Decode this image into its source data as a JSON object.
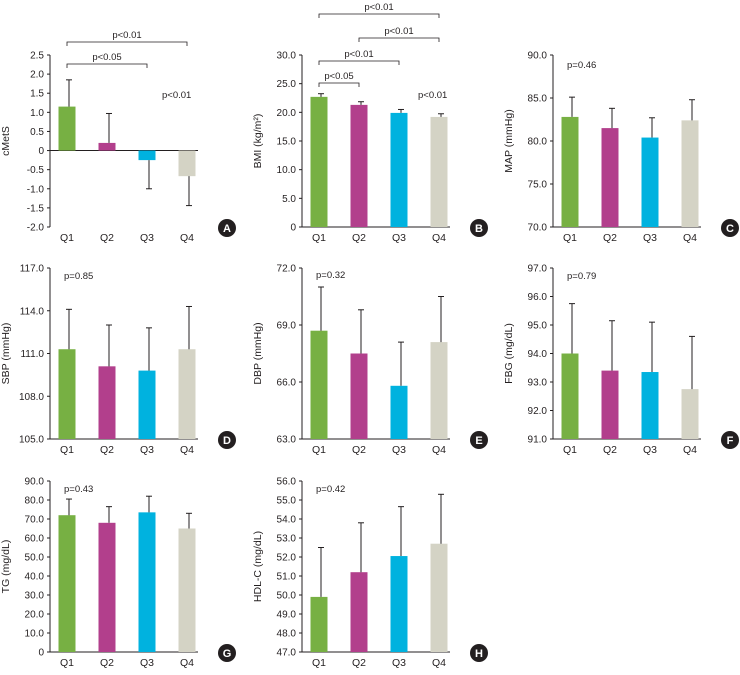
{
  "colors": {
    "Q1": "#77b043",
    "Q2": "#b23f8c",
    "Q3": "#00b2df",
    "Q4": "#d4d3c5",
    "axis": "#231f20",
    "badge": "#231f20"
  },
  "chart_data": [
    {
      "id": "A",
      "type": "bar",
      "ylabel": "cMetS",
      "categories": [
        "Q1",
        "Q2",
        "Q3",
        "Q4"
      ],
      "values": [
        1.15,
        0.2,
        -0.25,
        -0.67
      ],
      "errors": [
        0.7,
        0.77,
        0.75,
        0.77
      ],
      "ylim": [
        -2.0,
        2.5
      ],
      "yticks": [
        "-2.0",
        "-1.5",
        "-1.0",
        "-0.5",
        "0",
        "0.5",
        "1.0",
        "1.5",
        "2.0",
        "2.5"
      ],
      "annotations": [
        {
          "text": "p<0.01",
          "bracket": [
            "Q1",
            "Q4"
          ]
        },
        {
          "text": "p<0.05",
          "bracket": [
            "Q1",
            "Q3"
          ]
        },
        {
          "text": "p<0.01",
          "near": "Q4"
        }
      ],
      "badge": "A"
    },
    {
      "id": "B",
      "type": "bar",
      "ylabel": "BMI (kg/m²)",
      "categories": [
        "Q1",
        "Q2",
        "Q3",
        "Q4"
      ],
      "values": [
        22.7,
        21.3,
        19.9,
        19.2
      ],
      "errors": [
        0.55,
        0.55,
        0.6,
        0.55
      ],
      "ylim": [
        0,
        30.0
      ],
      "yticks": [
        "0",
        "5.0",
        "10.0",
        "15.0",
        "20.0",
        "25.0",
        "30.0"
      ],
      "annotations": [
        {
          "text": "p<0.01",
          "bracket": [
            "Q1",
            "Q4"
          ]
        },
        {
          "text": "p<0.01",
          "bracket": [
            "Q2",
            "Q4"
          ]
        },
        {
          "text": "p<0.01",
          "bracket": [
            "Q1",
            "Q3"
          ]
        },
        {
          "text": "p<0.05",
          "bracket": [
            "Q1",
            "Q2"
          ]
        },
        {
          "text": "p<0.01",
          "near": "Q4"
        }
      ],
      "badge": "B"
    },
    {
      "id": "C",
      "type": "bar",
      "ylabel": "MAP (mmHg)",
      "categories": [
        "Q1",
        "Q2",
        "Q3",
        "Q4"
      ],
      "values": [
        82.8,
        81.5,
        80.4,
        82.4
      ],
      "errors": [
        2.3,
        2.3,
        2.3,
        2.4
      ],
      "ylim": [
        70.0,
        90.0
      ],
      "yticks": [
        "70.0",
        "75.0",
        "80.0",
        "85.0",
        "90.0"
      ],
      "annotations": [
        {
          "text": "p=0.46"
        }
      ],
      "badge": "C"
    },
    {
      "id": "D",
      "type": "bar",
      "ylabel": "SBP (mmHg)",
      "categories": [
        "Q1",
        "Q2",
        "Q3",
        "Q4"
      ],
      "values": [
        111.3,
        110.1,
        109.8,
        111.3
      ],
      "errors": [
        2.8,
        2.9,
        3.0,
        3.0
      ],
      "ylim": [
        105.0,
        117.0
      ],
      "yticks": [
        "105.0",
        "108.0",
        "111.0",
        "114.0",
        "117.0"
      ],
      "annotations": [
        {
          "text": "p=0.85"
        }
      ],
      "badge": "D"
    },
    {
      "id": "E",
      "type": "bar",
      "ylabel": "DBP (mmHg)",
      "categories": [
        "Q1",
        "Q2",
        "Q3",
        "Q4"
      ],
      "values": [
        68.7,
        67.5,
        65.8,
        68.1
      ],
      "errors": [
        2.3,
        2.3,
        2.3,
        2.4
      ],
      "ylim": [
        63.0,
        72.0
      ],
      "yticks": [
        "63.0",
        "66.0",
        "69.0",
        "72.0"
      ],
      "annotations": [
        {
          "text": "p=0.32"
        }
      ],
      "badge": "E"
    },
    {
      "id": "F",
      "type": "bar",
      "ylabel": "FBG (mg/dL)",
      "categories": [
        "Q1",
        "Q2",
        "Q3",
        "Q4"
      ],
      "values": [
        94.0,
        93.4,
        93.35,
        92.75
      ],
      "errors": [
        1.75,
        1.75,
        1.75,
        1.85
      ],
      "ylim": [
        91.0,
        97.0
      ],
      "yticks": [
        "91.0",
        "92.0",
        "93.0",
        "94.0",
        "95.0",
        "96.0",
        "97.0"
      ],
      "annotations": [
        {
          "text": "p=0.79"
        }
      ],
      "badge": "F"
    },
    {
      "id": "G",
      "type": "bar",
      "ylabel": "TG (mg/dL)",
      "categories": [
        "Q1",
        "Q2",
        "Q3",
        "Q4"
      ],
      "values": [
        72.0,
        68.0,
        73.5,
        65.0
      ],
      "errors": [
        8.5,
        8.5,
        8.5,
        8.0
      ],
      "ylim": [
        0,
        90.0
      ],
      "yticks": [
        "0",
        "10.0",
        "20.0",
        "30.0",
        "40.0",
        "50.0",
        "60.0",
        "70.0",
        "80.0",
        "90.0"
      ],
      "annotations": [
        {
          "text": "p=0.43"
        }
      ],
      "badge": "G"
    },
    {
      "id": "H",
      "type": "bar",
      "ylabel": "HDL-C (mg/dL)",
      "categories": [
        "Q1",
        "Q2",
        "Q3",
        "Q4"
      ],
      "values": [
        49.9,
        51.2,
        52.05,
        52.7
      ],
      "errors": [
        2.6,
        2.6,
        2.6,
        2.6
      ],
      "ylim": [
        47.0,
        56.0
      ],
      "yticks": [
        "47.0",
        "48.0",
        "49.0",
        "50.0",
        "51.0",
        "52.0",
        "53.0",
        "54.0",
        "55.0",
        "56.0"
      ],
      "annotations": [
        {
          "text": "p=0.42"
        }
      ],
      "badge": "H"
    }
  ]
}
